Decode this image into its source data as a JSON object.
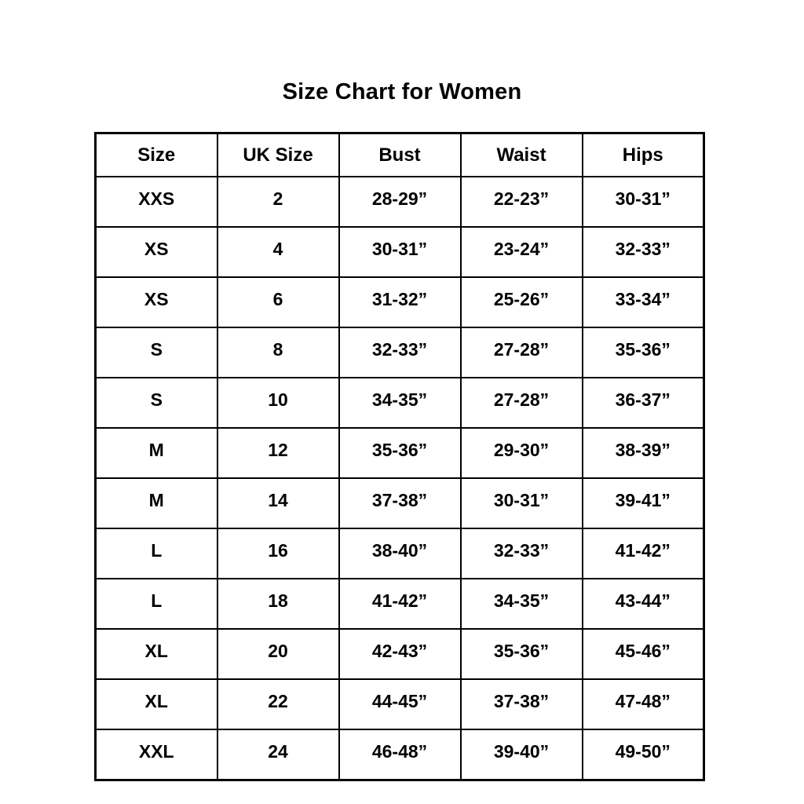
{
  "title": "Size Chart for Women",
  "colors": {
    "background": "#ffffff",
    "text": "#000000",
    "border": "#000000"
  },
  "chart_data": {
    "type": "table",
    "title": "Size Chart for Women",
    "headers": [
      "Size",
      "UK Size",
      "Bust",
      "Waist",
      "Hips"
    ],
    "rows": [
      [
        "XXS",
        "2",
        "28-29”",
        "22-23”",
        "30-31”"
      ],
      [
        "XS",
        "4",
        "30-31”",
        "23-24”",
        "32-33”"
      ],
      [
        "XS",
        "6",
        "31-32”",
        "25-26”",
        "33-34”"
      ],
      [
        "S",
        "8",
        "32-33”",
        "27-28”",
        "35-36”"
      ],
      [
        "S",
        "10",
        "34-35”",
        "27-28”",
        "36-37”"
      ],
      [
        "M",
        "12",
        "35-36”",
        "29-30”",
        "38-39”"
      ],
      [
        "M",
        "14",
        "37-38”",
        "30-31”",
        "39-41”"
      ],
      [
        "L",
        "16",
        "38-40”",
        "32-33”",
        "41-42”"
      ],
      [
        "L",
        "18",
        "41-42”",
        "34-35”",
        "43-44”"
      ],
      [
        "XL",
        "20",
        "42-43”",
        "35-36”",
        "45-46”"
      ],
      [
        "XL",
        "22",
        "44-45”",
        "37-38”",
        "47-48”"
      ],
      [
        "XXL",
        "24",
        "46-48”",
        "39-40”",
        "49-50”"
      ]
    ]
  }
}
